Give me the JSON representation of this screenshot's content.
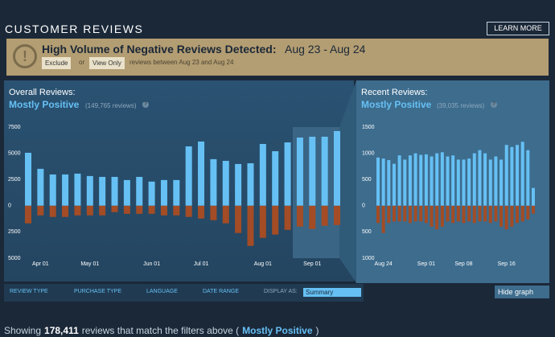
{
  "header": {
    "title": "CUSTOMER REVIEWS",
    "button": "LEARN MORE"
  },
  "alert": {
    "title": "High Volume of Negative Reviews Detected:",
    "dates": "Aug 23 - Aug 24",
    "exclude": "Exclude",
    "or": "or",
    "view_only": "View Only",
    "note": "reviews between Aug 23 and Aug 24"
  },
  "overall": {
    "label": "Overall Reviews:",
    "rating": "Mostly Positive",
    "count": "(149,765 reviews)",
    "help": "?"
  },
  "recent": {
    "label": "Recent Reviews:",
    "rating": "Mostly Positive",
    "count": "(39,035 reviews)",
    "help": "?"
  },
  "filters": {
    "items": [
      "REVIEW TYPE",
      "PURCHASE TYPE",
      "LANGUAGE",
      "DATE RANGE"
    ],
    "display_as": "DISPLAY AS:",
    "display_value": "Summary",
    "hide_graph": "Hide graph"
  },
  "footer": {
    "prefix": "Showing",
    "count": "178,411",
    "middle": "reviews that match the filters above (",
    "rating": "Mostly Positive",
    "suffix": ")"
  },
  "chart_data": [
    {
      "type": "bar",
      "categories": [
        null,
        "Apr 01",
        null,
        null,
        null,
        "May 01",
        null,
        null,
        null,
        null,
        "Jun 01",
        null,
        null,
        null,
        "Jul 01",
        null,
        null,
        null,
        null,
        "Aug 01",
        null,
        null,
        null,
        "Sep 01",
        null,
        null
      ],
      "series": [
        {
          "color": "#66c0f4",
          "values": [
            5050,
            3520,
            2980,
            2980,
            3060,
            2830,
            2750,
            2750,
            2450,
            2750,
            2300,
            2450,
            2450,
            5660,
            6120,
            4440,
            4280,
            3980,
            4050,
            5890,
            5200,
            6040,
            6500,
            6580,
            6580,
            7120
          ]
        },
        {
          "color": "#a34c25",
          "values": [
            -1680,
            -920,
            -1070,
            -1070,
            -920,
            -920,
            -920,
            -610,
            -770,
            -770,
            -770,
            -920,
            -920,
            -1070,
            -1220,
            -1380,
            -1680,
            -2600,
            -3830,
            -3060,
            -2750,
            -2300,
            -1990,
            -2220,
            -1910,
            -1840
          ]
        }
      ],
      "ylim": [
        -5000,
        7500
      ],
      "yticks": [
        7500,
        5000,
        2500,
        0,
        {
          "value": -2500,
          "label": "2500"
        },
        {
          "value": -5000,
          "label": "5000"
        }
      ]
    },
    {
      "type": "bar",
      "categories": [
        null,
        "Aug 24",
        null,
        null,
        null,
        null,
        null,
        null,
        null,
        "Sep 01",
        null,
        null,
        null,
        null,
        null,
        null,
        "Sep 08",
        null,
        null,
        null,
        null,
        null,
        null,
        null,
        "Sep 16",
        null,
        null,
        null,
        null,
        null
      ],
      "series": [
        {
          "color": "#66c0f4",
          "values": [
            920,
            900,
            870,
            800,
            960,
            880,
            960,
            1000,
            970,
            980,
            940,
            1000,
            1020,
            940,
            960,
            880,
            880,
            900,
            1000,
            1060,
            1000,
            880,
            940,
            880,
            1160,
            1120,
            1160,
            1220,
            1060,
            340
          ]
        },
        {
          "color": "#a34c25",
          "values": [
            -330,
            -520,
            -330,
            -300,
            -300,
            -300,
            -330,
            -300,
            -300,
            -330,
            -400,
            -450,
            -400,
            -300,
            -330,
            -300,
            -330,
            -300,
            -330,
            -300,
            -300,
            -330,
            -300,
            -400,
            -450,
            -400,
            -330,
            -300,
            -260,
            -150
          ]
        }
      ],
      "ylim": [
        -1000,
        1500
      ],
      "yticks": [
        1500,
        1000,
        500,
        0,
        {
          "value": -500,
          "label": "500"
        },
        {
          "value": -1000,
          "label": "1000"
        }
      ]
    }
  ]
}
